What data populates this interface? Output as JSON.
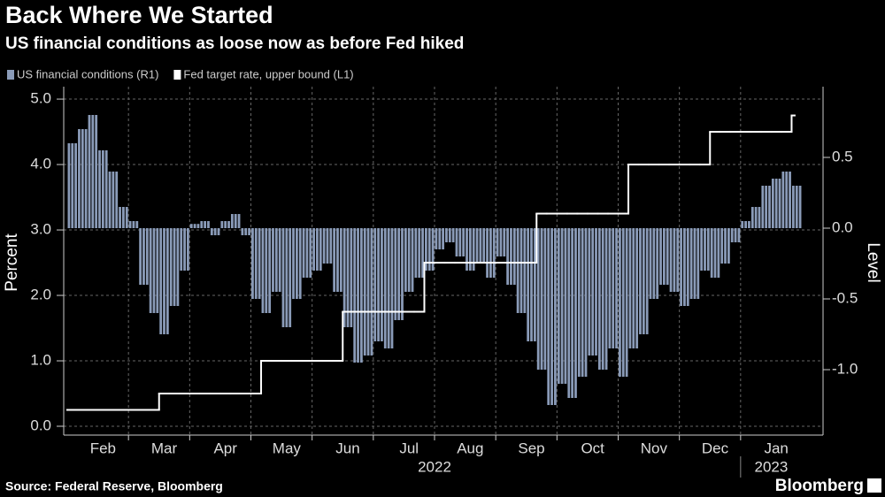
{
  "chart_data": {
    "type": "bar",
    "title": "Back Where We Started",
    "subtitle": "US financial conditions as loose now as before Fed hiked",
    "y_label": "Percent",
    "y2_label": "Level",
    "source": "Source: Federal Reserve, Bloomberg",
    "brand": "Bloomberg",
    "x_year_labels": [
      "2022",
      "2023"
    ],
    "categories": [
      null,
      null,
      null,
      "Feb",
      null,
      null,
      null,
      null,
      null,
      "Mar",
      null,
      null,
      null,
      null,
      null,
      "Apr",
      null,
      null,
      null,
      null,
      null,
      "May",
      null,
      null,
      null,
      null,
      null,
      "Jun",
      null,
      null,
      null,
      null,
      null,
      "Jul",
      null,
      null,
      null,
      null,
      null,
      "Aug",
      null,
      null,
      null,
      null,
      null,
      "Sep",
      null,
      null,
      null,
      null,
      null,
      "Oct",
      null,
      null,
      null,
      null,
      null,
      "Nov",
      null,
      null,
      null,
      null,
      null,
      "Dec",
      null,
      null,
      null,
      null,
      null,
      "Jan",
      null,
      null
    ],
    "series": [
      {
        "name": "US financial conditions (R1)",
        "color": "#8a9bb8",
        "axis": "y2",
        "type": "bar",
        "values": [
          0.6,
          0.7,
          0.8,
          0.55,
          0.4,
          0.15,
          0.05,
          -0.4,
          -0.6,
          -0.75,
          -0.55,
          -0.3,
          0.03,
          0.05,
          -0.05,
          0.05,
          0.1,
          -0.05,
          -0.5,
          -0.6,
          -0.45,
          -0.7,
          -0.5,
          -0.35,
          -0.3,
          -0.25,
          -0.45,
          -0.7,
          -0.95,
          -0.9,
          -0.8,
          -0.85,
          -0.65,
          -0.45,
          -0.35,
          -0.3,
          -0.15,
          -0.1,
          -0.2,
          -0.3,
          -0.25,
          -0.35,
          -0.2,
          -0.4,
          -0.6,
          -0.8,
          -1.0,
          -1.25,
          -1.1,
          -1.2,
          -1.05,
          -0.9,
          -1.0,
          -0.85,
          -1.05,
          -0.85,
          -0.75,
          -0.5,
          -0.4,
          -0.45,
          -0.55,
          -0.5,
          -0.3,
          -0.35,
          -0.25,
          -0.1,
          0.05,
          0.15,
          0.3,
          0.35,
          0.4,
          0.3
        ]
      },
      {
        "name": "Fed target rate, upper bound (L1)",
        "color": "#ffffff",
        "axis": "y",
        "type": "step",
        "values": [
          0.25,
          0.25,
          0.25,
          0.25,
          0.25,
          0.25,
          0.25,
          0.25,
          0.25,
          0.5,
          0.5,
          0.5,
          0.5,
          0.5,
          0.5,
          0.5,
          0.5,
          0.5,
          0.5,
          1.0,
          1.0,
          1.0,
          1.0,
          1.0,
          1.0,
          1.0,
          1.0,
          1.75,
          1.75,
          1.75,
          1.75,
          1.75,
          1.75,
          1.75,
          1.75,
          2.5,
          2.5,
          2.5,
          2.5,
          2.5,
          2.5,
          2.5,
          2.5,
          2.5,
          2.5,
          2.5,
          3.25,
          3.25,
          3.25,
          3.25,
          3.25,
          3.25,
          3.25,
          3.25,
          3.25,
          4.0,
          4.0,
          4.0,
          4.0,
          4.0,
          4.0,
          4.0,
          4.0,
          4.5,
          4.5,
          4.5,
          4.5,
          4.5,
          4.5,
          4.5,
          4.5,
          4.75
        ]
      }
    ],
    "ylim": [
      -0.135,
      5.19
    ],
    "yticks": [
      {
        "value": 0,
        "label": "0.0"
      },
      {
        "value": 1,
        "label": "1.0"
      },
      {
        "value": 2,
        "label": "2.0"
      },
      {
        "value": 3,
        "label": "3.0"
      },
      {
        "value": 4,
        "label": "4.0"
      },
      {
        "value": 5,
        "label": "5.0"
      }
    ],
    "y2lim": [
      -1.4625,
      1.0
    ],
    "y2ticks": [
      {
        "value": -1,
        "label": "-1.0"
      },
      -0.5,
      {
        "value": 0,
        "label": "0.0"
      },
      0.5
    ],
    "grid": true
  }
}
